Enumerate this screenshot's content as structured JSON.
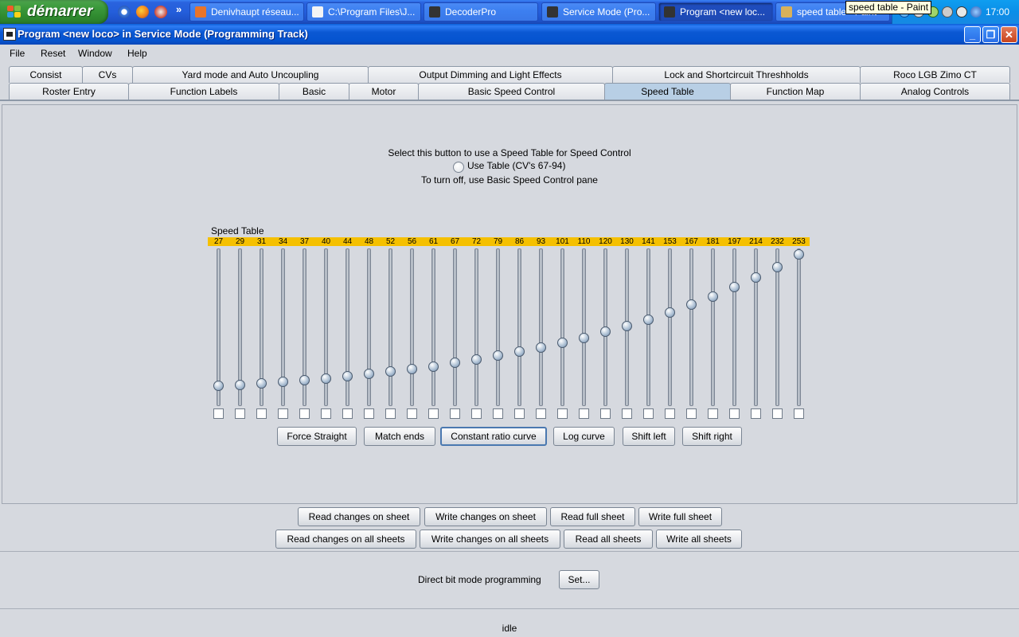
{
  "taskbar": {
    "start_label": "démarrer",
    "buttons": [
      {
        "label": "Denivhaupt réseau...",
        "active": false
      },
      {
        "label": "C:\\Program Files\\J...",
        "active": false
      },
      {
        "label": "DecoderPro",
        "active": false
      },
      {
        "label": "Service Mode (Pro...",
        "active": false
      },
      {
        "label": "Program <new loc...",
        "active": true
      },
      {
        "label": "speed table - Paint",
        "active": false
      }
    ],
    "tooltip": "speed table - Paint",
    "clock": "17:00"
  },
  "window": {
    "title": "Program <new loco> in Service Mode (Programming Track)"
  },
  "menu": [
    "File",
    "Reset",
    "Window",
    "Help"
  ],
  "tabs_row1": [
    "Consist",
    "CVs",
    "Yard mode and Auto Uncoupling",
    "Output Dimming and Light Effects",
    "Lock and Shortcircuit Threshholds",
    "Roco LGB Zimo CT"
  ],
  "tabs_row2": [
    "Roster Entry",
    "Function Labels",
    "Basic",
    "Motor",
    "Basic Speed Control",
    "Speed Table",
    "Function Map",
    "Analog Controls"
  ],
  "selected_tab": "Speed Table",
  "panel": {
    "intro": "Select this button to use a Speed Table for Speed Control",
    "radio_label": "Use Table (CV's 67-94)",
    "radio_checked": false,
    "note": "To turn off, use Basic Speed Control pane",
    "speed_table_label": "Speed Table",
    "slider_max": 255,
    "values": [
      27,
      29,
      31,
      34,
      37,
      40,
      44,
      48,
      52,
      56,
      61,
      67,
      72,
      79,
      86,
      93,
      101,
      110,
      120,
      130,
      141,
      153,
      167,
      181,
      197,
      214,
      232,
      253
    ],
    "curve_buttons": [
      "Force Straight",
      "Match ends",
      "Constant ratio curve",
      "Log curve",
      "Shift left",
      "Shift right"
    ]
  },
  "sheet_buttons_row1": [
    "Read changes on sheet",
    "Write changes on sheet",
    "Read full sheet",
    "Write full sheet"
  ],
  "sheet_buttons_row2": [
    "Read changes on all sheets",
    "Write changes on all sheets",
    "Read all sheets",
    "Write all sheets"
  ],
  "direct_bit": {
    "label": "Direct bit mode programming",
    "button": "Set..."
  },
  "status": "idle",
  "colors": {
    "value_badge": "#f5c000",
    "selected_tab": "#b8cfe5",
    "taskbar": "#245edb"
  }
}
